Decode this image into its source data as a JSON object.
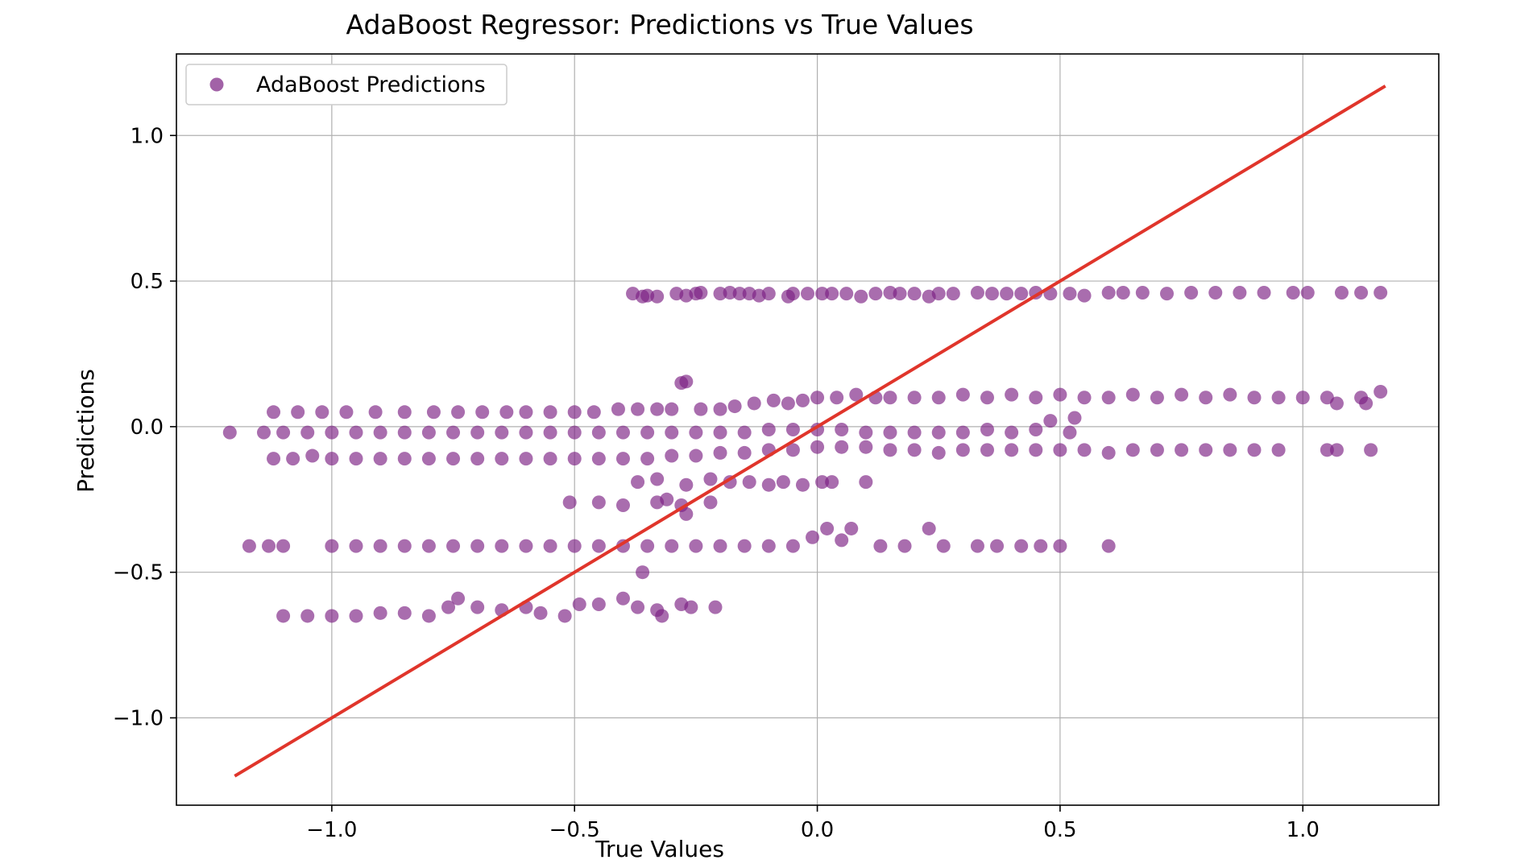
{
  "chart_data": {
    "type": "scatter",
    "title": "AdaBoost Regressor: Predictions vs True Values",
    "xlabel": "True Values",
    "ylabel": "Predictions",
    "xlim": [
      -1.32,
      1.28
    ],
    "ylim": [
      -1.3,
      1.28
    ],
    "xticks": [
      -1.0,
      -0.5,
      0.0,
      0.5,
      1.0
    ],
    "xtick_labels": [
      "−1.0",
      "−0.5",
      "0.0",
      "0.5",
      "1.0"
    ],
    "yticks": [
      -1.0,
      -0.5,
      0.0,
      0.5,
      1.0
    ],
    "ytick_labels": [
      "−1.0",
      "−0.5",
      "0.0",
      "0.5",
      "1.0"
    ],
    "grid": true,
    "legend_position": "top-left",
    "colors": {
      "points": "#7b1f82",
      "reference_line": "#e0352b"
    },
    "series": [
      {
        "name": "AdaBoost Predictions",
        "kind": "scatter",
        "points": [
          [
            -0.38,
            0.457
          ],
          [
            -0.36,
            0.447
          ],
          [
            -0.35,
            0.45
          ],
          [
            -0.33,
            0.447
          ],
          [
            -0.29,
            0.457
          ],
          [
            -0.27,
            0.45
          ],
          [
            -0.25,
            0.457
          ],
          [
            -0.24,
            0.46
          ],
          [
            -0.2,
            0.457
          ],
          [
            -0.18,
            0.46
          ],
          [
            -0.16,
            0.457
          ],
          [
            -0.14,
            0.457
          ],
          [
            -0.12,
            0.45
          ],
          [
            -0.1,
            0.457
          ],
          [
            -0.06,
            0.447
          ],
          [
            -0.05,
            0.457
          ],
          [
            -0.02,
            0.457
          ],
          [
            0.01,
            0.457
          ],
          [
            0.03,
            0.457
          ],
          [
            0.06,
            0.457
          ],
          [
            0.09,
            0.447
          ],
          [
            0.12,
            0.457
          ],
          [
            0.15,
            0.46
          ],
          [
            0.17,
            0.457
          ],
          [
            0.2,
            0.457
          ],
          [
            0.23,
            0.447
          ],
          [
            0.25,
            0.457
          ],
          [
            0.28,
            0.457
          ],
          [
            0.33,
            0.46
          ],
          [
            0.36,
            0.457
          ],
          [
            0.39,
            0.457
          ],
          [
            0.42,
            0.457
          ],
          [
            0.45,
            0.46
          ],
          [
            0.48,
            0.457
          ],
          [
            0.52,
            0.457
          ],
          [
            0.55,
            0.45
          ],
          [
            0.6,
            0.46
          ],
          [
            0.63,
            0.46
          ],
          [
            0.67,
            0.46
          ],
          [
            0.72,
            0.457
          ],
          [
            0.77,
            0.46
          ],
          [
            0.82,
            0.46
          ],
          [
            0.87,
            0.46
          ],
          [
            0.92,
            0.46
          ],
          [
            0.98,
            0.46
          ],
          [
            1.01,
            0.46
          ],
          [
            1.08,
            0.46
          ],
          [
            1.12,
            0.46
          ],
          [
            1.16,
            0.46
          ],
          [
            -1.12,
            0.05
          ],
          [
            -1.07,
            0.05
          ],
          [
            -1.02,
            0.05
          ],
          [
            -0.97,
            0.05
          ],
          [
            -0.91,
            0.05
          ],
          [
            -0.85,
            0.05
          ],
          [
            -0.79,
            0.05
          ],
          [
            -0.74,
            0.05
          ],
          [
            -0.69,
            0.05
          ],
          [
            -0.64,
            0.05
          ],
          [
            -0.6,
            0.05
          ],
          [
            -0.55,
            0.05
          ],
          [
            -0.5,
            0.05
          ],
          [
            -0.46,
            0.05
          ],
          [
            -0.41,
            0.06
          ],
          [
            -0.37,
            0.06
          ],
          [
            -0.33,
            0.06
          ],
          [
            -0.3,
            0.06
          ],
          [
            -0.28,
            0.15
          ],
          [
            -0.27,
            0.155
          ],
          [
            -0.24,
            0.06
          ],
          [
            -0.2,
            0.06
          ],
          [
            -0.17,
            0.07
          ],
          [
            -0.13,
            0.08
          ],
          [
            -0.09,
            0.09
          ],
          [
            -0.06,
            0.08
          ],
          [
            -0.03,
            0.09
          ],
          [
            0.0,
            0.1
          ],
          [
            0.04,
            0.1
          ],
          [
            0.08,
            0.11
          ],
          [
            0.12,
            0.1
          ],
          [
            0.15,
            0.1
          ],
          [
            0.2,
            0.1
          ],
          [
            0.25,
            0.1
          ],
          [
            0.3,
            0.11
          ],
          [
            0.35,
            0.1
          ],
          [
            0.4,
            0.11
          ],
          [
            0.45,
            0.1
          ],
          [
            0.5,
            0.11
          ],
          [
            0.55,
            0.1
          ],
          [
            0.6,
            0.1
          ],
          [
            0.65,
            0.11
          ],
          [
            0.7,
            0.1
          ],
          [
            0.75,
            0.11
          ],
          [
            0.8,
            0.1
          ],
          [
            0.85,
            0.11
          ],
          [
            0.9,
            0.1
          ],
          [
            0.95,
            0.1
          ],
          [
            1.0,
            0.1
          ],
          [
            1.05,
            0.1
          ],
          [
            1.07,
            0.08
          ],
          [
            1.12,
            0.1
          ],
          [
            1.13,
            0.08
          ],
          [
            1.16,
            0.12
          ],
          [
            -1.21,
            -0.02
          ],
          [
            -1.14,
            -0.02
          ],
          [
            -1.1,
            -0.02
          ],
          [
            -1.05,
            -0.02
          ],
          [
            -1.0,
            -0.02
          ],
          [
            -0.95,
            -0.02
          ],
          [
            -0.9,
            -0.02
          ],
          [
            -0.85,
            -0.02
          ],
          [
            -0.8,
            -0.02
          ],
          [
            -0.75,
            -0.02
          ],
          [
            -0.7,
            -0.02
          ],
          [
            -0.65,
            -0.02
          ],
          [
            -0.6,
            -0.02
          ],
          [
            -0.55,
            -0.02
          ],
          [
            -0.5,
            -0.02
          ],
          [
            -0.45,
            -0.02
          ],
          [
            -0.4,
            -0.02
          ],
          [
            -0.35,
            -0.02
          ],
          [
            -0.3,
            -0.02
          ],
          [
            -0.25,
            -0.02
          ],
          [
            -0.2,
            -0.02
          ],
          [
            -0.15,
            -0.02
          ],
          [
            -0.1,
            -0.01
          ],
          [
            -0.05,
            -0.01
          ],
          [
            0.0,
            -0.01
          ],
          [
            0.05,
            -0.01
          ],
          [
            0.1,
            -0.02
          ],
          [
            0.15,
            -0.02
          ],
          [
            0.2,
            -0.02
          ],
          [
            0.25,
            -0.02
          ],
          [
            0.3,
            -0.02
          ],
          [
            0.35,
            -0.01
          ],
          [
            0.4,
            -0.02
          ],
          [
            0.45,
            -0.01
          ],
          [
            0.48,
            0.02
          ],
          [
            0.52,
            -0.02
          ],
          [
            0.53,
            0.03
          ],
          [
            -1.12,
            -0.11
          ],
          [
            -1.08,
            -0.11
          ],
          [
            -1.04,
            -0.1
          ],
          [
            -1.0,
            -0.11
          ],
          [
            -0.95,
            -0.11
          ],
          [
            -0.9,
            -0.11
          ],
          [
            -0.85,
            -0.11
          ],
          [
            -0.8,
            -0.11
          ],
          [
            -0.75,
            -0.11
          ],
          [
            -0.7,
            -0.11
          ],
          [
            -0.65,
            -0.11
          ],
          [
            -0.6,
            -0.11
          ],
          [
            -0.55,
            -0.11
          ],
          [
            -0.5,
            -0.11
          ],
          [
            -0.45,
            -0.11
          ],
          [
            -0.4,
            -0.11
          ],
          [
            -0.35,
            -0.11
          ],
          [
            -0.3,
            -0.1
          ],
          [
            -0.25,
            -0.1
          ],
          [
            -0.2,
            -0.09
          ],
          [
            -0.15,
            -0.09
          ],
          [
            -0.1,
            -0.08
          ],
          [
            -0.05,
            -0.08
          ],
          [
            0.0,
            -0.07
          ],
          [
            0.05,
            -0.07
          ],
          [
            0.1,
            -0.07
          ],
          [
            0.15,
            -0.08
          ],
          [
            0.2,
            -0.08
          ],
          [
            0.25,
            -0.09
          ],
          [
            0.3,
            -0.08
          ],
          [
            0.35,
            -0.08
          ],
          [
            0.4,
            -0.08
          ],
          [
            0.45,
            -0.08
          ],
          [
            0.5,
            -0.08
          ],
          [
            0.55,
            -0.08
          ],
          [
            0.6,
            -0.09
          ],
          [
            0.65,
            -0.08
          ],
          [
            0.7,
            -0.08
          ],
          [
            0.75,
            -0.08
          ],
          [
            0.8,
            -0.08
          ],
          [
            0.85,
            -0.08
          ],
          [
            0.9,
            -0.08
          ],
          [
            0.95,
            -0.08
          ],
          [
            1.05,
            -0.08
          ],
          [
            1.07,
            -0.08
          ],
          [
            1.14,
            -0.08
          ],
          [
            -0.37,
            -0.19
          ],
          [
            -0.33,
            -0.18
          ],
          [
            -0.27,
            -0.2
          ],
          [
            -0.22,
            -0.18
          ],
          [
            -0.18,
            -0.19
          ],
          [
            -0.14,
            -0.19
          ],
          [
            -0.1,
            -0.2
          ],
          [
            -0.07,
            -0.19
          ],
          [
            -0.03,
            -0.2
          ],
          [
            0.01,
            -0.19
          ],
          [
            0.03,
            -0.19
          ],
          [
            0.1,
            -0.19
          ],
          [
            -0.51,
            -0.26
          ],
          [
            -0.45,
            -0.26
          ],
          [
            -0.4,
            -0.27
          ],
          [
            -0.33,
            -0.26
          ],
          [
            -0.31,
            -0.25
          ],
          [
            -0.28,
            -0.27
          ],
          [
            -0.27,
            -0.3
          ],
          [
            -0.22,
            -0.26
          ],
          [
            -1.17,
            -0.41
          ],
          [
            -1.13,
            -0.41
          ],
          [
            -1.1,
            -0.41
          ],
          [
            -1.0,
            -0.41
          ],
          [
            -0.95,
            -0.41
          ],
          [
            -0.9,
            -0.41
          ],
          [
            -0.85,
            -0.41
          ],
          [
            -0.8,
            -0.41
          ],
          [
            -0.75,
            -0.41
          ],
          [
            -0.7,
            -0.41
          ],
          [
            -0.65,
            -0.41
          ],
          [
            -0.6,
            -0.41
          ],
          [
            -0.55,
            -0.41
          ],
          [
            -0.5,
            -0.41
          ],
          [
            -0.45,
            -0.41
          ],
          [
            -0.4,
            -0.41
          ],
          [
            -0.35,
            -0.41
          ],
          [
            -0.3,
            -0.41
          ],
          [
            -0.25,
            -0.41
          ],
          [
            -0.2,
            -0.41
          ],
          [
            -0.15,
            -0.41
          ],
          [
            -0.1,
            -0.41
          ],
          [
            -0.05,
            -0.41
          ],
          [
            -0.01,
            -0.38
          ],
          [
            0.02,
            -0.35
          ],
          [
            0.05,
            -0.39
          ],
          [
            0.07,
            -0.35
          ],
          [
            0.13,
            -0.41
          ],
          [
            0.18,
            -0.41
          ],
          [
            0.23,
            -0.35
          ],
          [
            0.26,
            -0.41
          ],
          [
            0.33,
            -0.41
          ],
          [
            0.37,
            -0.41
          ],
          [
            0.42,
            -0.41
          ],
          [
            0.46,
            -0.41
          ],
          [
            0.5,
            -0.41
          ],
          [
            0.6,
            -0.41
          ],
          [
            -0.36,
            -0.5
          ],
          [
            -1.1,
            -0.65
          ],
          [
            -1.05,
            -0.65
          ],
          [
            -1.0,
            -0.65
          ],
          [
            -0.95,
            -0.65
          ],
          [
            -0.9,
            -0.64
          ],
          [
            -0.85,
            -0.64
          ],
          [
            -0.8,
            -0.65
          ],
          [
            -0.76,
            -0.62
          ],
          [
            -0.74,
            -0.59
          ],
          [
            -0.7,
            -0.62
          ],
          [
            -0.65,
            -0.63
          ],
          [
            -0.6,
            -0.62
          ],
          [
            -0.57,
            -0.64
          ],
          [
            -0.52,
            -0.65
          ],
          [
            -0.49,
            -0.61
          ],
          [
            -0.45,
            -0.61
          ],
          [
            -0.4,
            -0.59
          ],
          [
            -0.37,
            -0.62
          ],
          [
            -0.33,
            -0.63
          ],
          [
            -0.32,
            -0.65
          ],
          [
            -0.28,
            -0.61
          ],
          [
            -0.26,
            -0.62
          ],
          [
            -0.21,
            -0.62
          ]
        ]
      },
      {
        "kind": "line",
        "x": [
          -1.2,
          1.17
        ],
        "y": [
          -1.2,
          1.17
        ]
      }
    ]
  }
}
